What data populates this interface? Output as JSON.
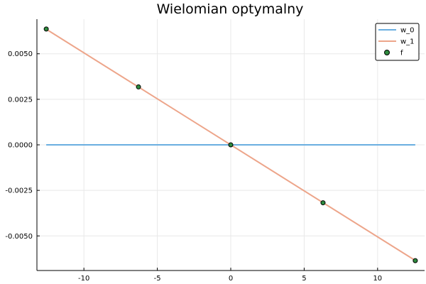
{
  "chart_data": {
    "type": "line",
    "title": "Wielomian optymalny",
    "xlabel": "",
    "ylabel": "",
    "xlim": [
      -13.2,
      13.2
    ],
    "ylim": [
      -0.0069,
      0.0069
    ],
    "x_ticks": [
      -10,
      -5,
      0,
      5,
      10
    ],
    "x_tick_labels": [
      "-10",
      "-5",
      "0",
      "5",
      "10"
    ],
    "y_ticks": [
      0.005,
      0.0025,
      0.0,
      -0.0025,
      -0.005
    ],
    "y_tick_labels": [
      "0.0050",
      "0.0025",
      "0.0000",
      "-0.0025",
      "-0.0050"
    ],
    "grid": true,
    "legend_position": "top-right",
    "series": [
      {
        "name": "w_0",
        "kind": "line",
        "color": "#6aaee0",
        "x": [
          -12.566,
          12.566
        ],
        "y": [
          0.0,
          0.0
        ]
      },
      {
        "name": "w_1",
        "kind": "line",
        "color": "#eda58a",
        "x": [
          -12.566,
          12.566
        ],
        "y": [
          0.00635,
          -0.00635
        ]
      },
      {
        "name": "f",
        "kind": "scatter",
        "color": "#2e8b3e",
        "x": [
          -12.566,
          -6.283,
          0.0,
          6.283,
          12.566
        ],
        "y": [
          0.00636,
          0.00318,
          0.0,
          -0.00318,
          -0.00636
        ]
      }
    ]
  }
}
